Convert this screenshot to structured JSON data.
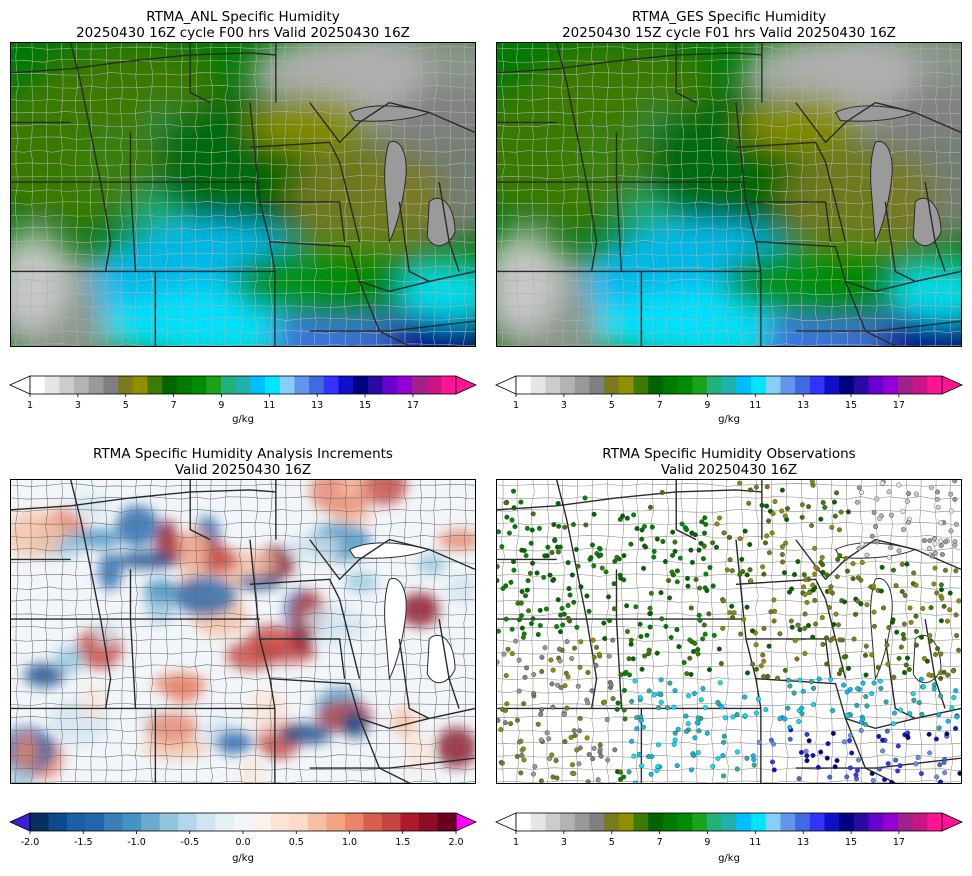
{
  "panels": [
    {
      "id": "anl",
      "title_line1": "RTMA_ANL Specific Humidity",
      "title_line2": "20250430 16Z cycle F00 hrs Valid 20250430 16Z",
      "kind": "field",
      "colorbar": "humidity"
    },
    {
      "id": "ges",
      "title_line1": "RTMA_GES Specific Humidity",
      "title_line2": "20250430 15Z cycle F01 hrs Valid 20250430 16Z",
      "kind": "field",
      "colorbar": "humidity"
    },
    {
      "id": "inc",
      "title_line1": "RTMA Specific Humidity Analysis Increments",
      "title_line2": "Valid 20250430 16Z",
      "kind": "increment",
      "colorbar": "increment"
    },
    {
      "id": "obs",
      "title_line1": "RTMA Specific Humidity Observations",
      "title_line2": "Valid 20250430 16Z",
      "kind": "obs",
      "colorbar": "humidity"
    }
  ],
  "colorbars": {
    "humidity": {
      "unit": "g/kg",
      "min": 1,
      "max": 18,
      "ticks": [
        "1",
        "3",
        "5",
        "7",
        "9",
        "11",
        "13",
        "15",
        "17"
      ],
      "colors": [
        "#ffffff",
        "#e6e6e6",
        "#cccccc",
        "#b3b3b3",
        "#999999",
        "#808080",
        "#7a7a1f",
        "#8f8f00",
        "#3d7a00",
        "#006400",
        "#007a00",
        "#008c00",
        "#1aa31a",
        "#20b27a",
        "#20b2aa",
        "#00bfff",
        "#00e5ff",
        "#87cefa",
        "#6495ed",
        "#4169e1",
        "#3333ff",
        "#1010c8",
        "#000080",
        "#2a0aa0",
        "#6a00d0",
        "#9400d3",
        "#a0208c",
        "#c71585",
        "#ff1493"
      ]
    },
    "increment": {
      "unit": "g/kg",
      "min": -2.0,
      "max": 2.0,
      "ticks": [
        "-2.0",
        "-1.5",
        "-1.0",
        "-0.5",
        "0.0",
        "0.5",
        "1.0",
        "1.5",
        "2.0"
      ],
      "under_color": "#3a1fd1",
      "over_color": "#ff00ff",
      "colors": [
        "#053061",
        "#0b4a8c",
        "#1a5ea3",
        "#2166ac",
        "#3a7fba",
        "#4393c3",
        "#6aa9d0",
        "#92c5de",
        "#b4d6e8",
        "#d1e5f0",
        "#e4eff6",
        "#f2f6fa",
        "#fbf2ee",
        "#fbe3d6",
        "#fddbc7",
        "#f8c0a3",
        "#f4a582",
        "#e9856a",
        "#d6604d",
        "#c7443e",
        "#b2182b",
        "#8c0d25",
        "#67001f"
      ]
    }
  }
}
